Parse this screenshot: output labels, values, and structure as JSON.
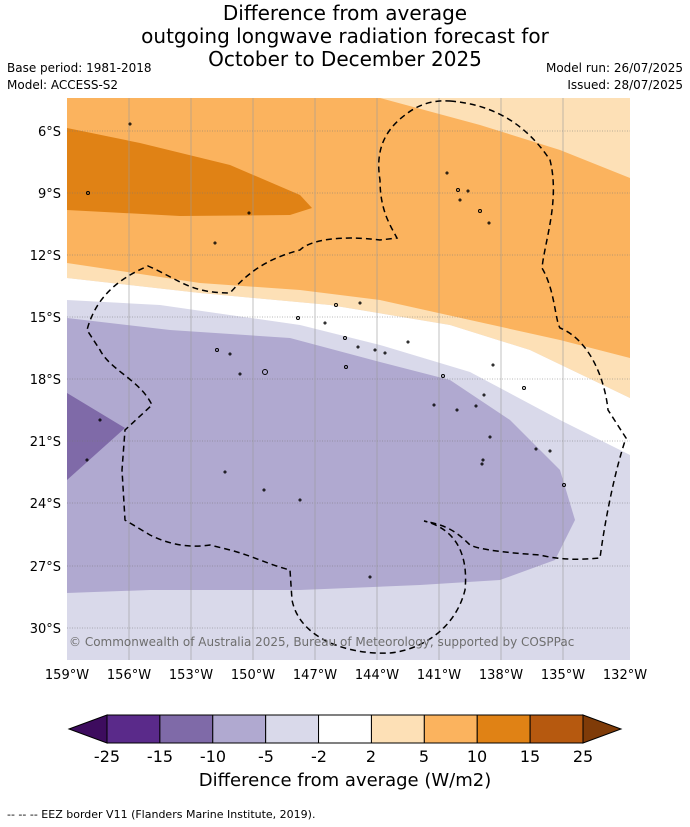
{
  "title": {
    "line1": "Difference from average",
    "line2": "outgoing longwave radiation forecast for",
    "line3": "October to December 2025"
  },
  "meta": {
    "base_period": "Base period: 1981-2018",
    "model": "Model: ACCESS-S2",
    "model_run": "Model run: 26/07/2025",
    "issued": "Issued: 28/07/2025"
  },
  "map": {
    "lat_labels": [
      "6°S",
      "9°S",
      "12°S",
      "15°S",
      "18°S",
      "21°S",
      "24°S",
      "27°S",
      "30°S"
    ],
    "lon_labels": [
      "159°W",
      "156°W",
      "153°W",
      "150°W",
      "147°W",
      "144°W",
      "141°W",
      "138°W",
      "135°W",
      "132°W"
    ],
    "copyright": "© Commonwealth of Australia 2025, Bureau of Meteorology, supported by COSPPac"
  },
  "colorbar": {
    "ticks": [
      "-25",
      "-15",
      "-10",
      "-5",
      "-2",
      "2",
      "5",
      "10",
      "15",
      "25"
    ],
    "colors": [
      "#5a2a8a",
      "#7f6aa8",
      "#b0a9d0",
      "#d9d9ea",
      "#ffffff",
      "#fde0b6",
      "#fbb35e",
      "#e08215",
      "#b6590f"
    ],
    "under_color": "#3d0c5e",
    "over_color": "#7f3b08",
    "label": "Difference from average (W/m2)"
  },
  "footer": {
    "legend": "--  --  -- EEZ border V11 (Flanders Marine Institute, 2019)."
  }
}
